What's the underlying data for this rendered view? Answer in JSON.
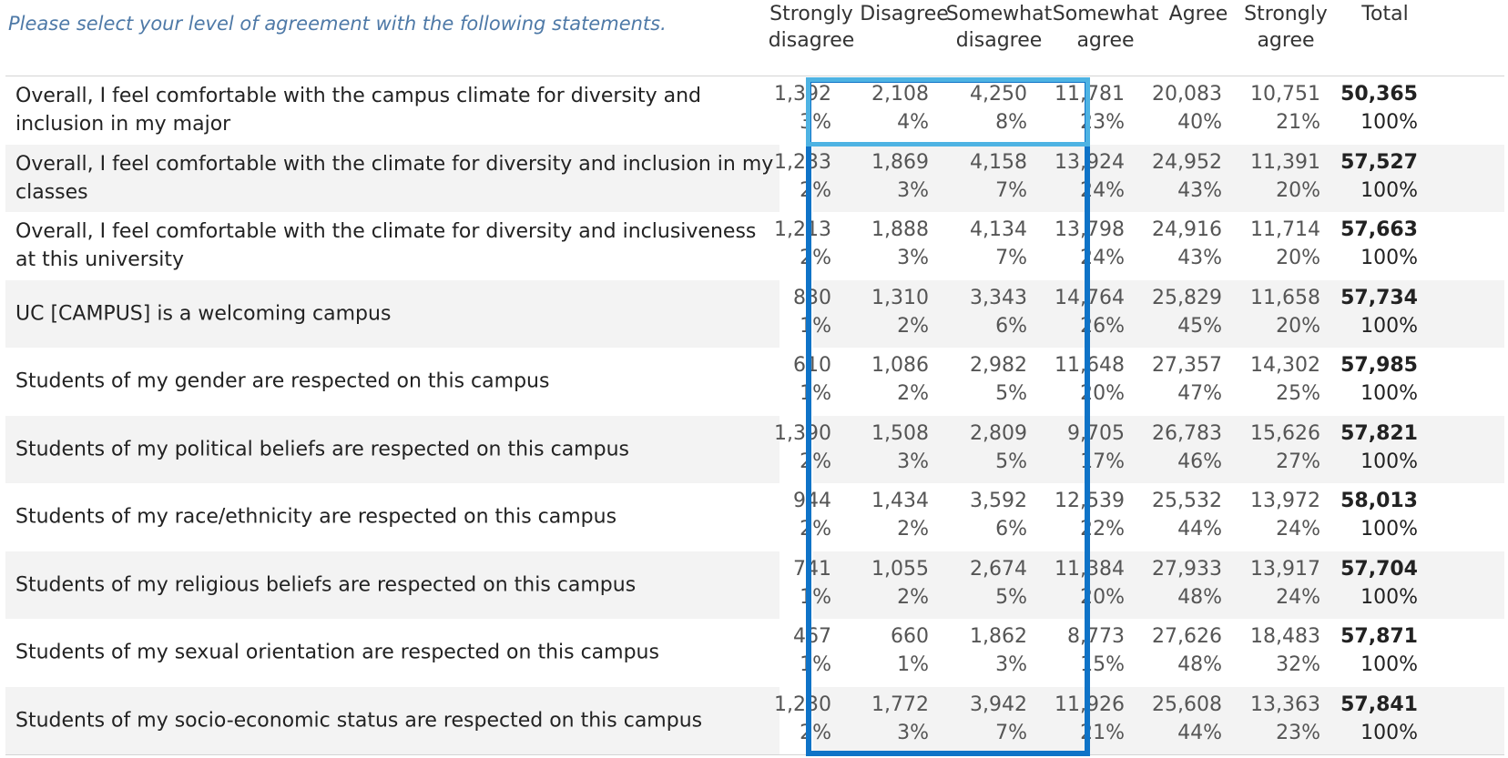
{
  "prompt": "Please select your level of agreement with the following statements.",
  "columns": [
    {
      "line1": "Strongly",
      "line2": "disagree"
    },
    {
      "line1": "Disagree",
      "line2": ""
    },
    {
      "line1": "Somewhat",
      "line2": "disagree"
    },
    {
      "line1": "Somewhat",
      "line2": "agree"
    },
    {
      "line1": "Agree",
      "line2": ""
    },
    {
      "line1": "Strongly",
      "line2": "agree"
    },
    {
      "line1": "Total",
      "line2": ""
    }
  ],
  "rows": [
    {
      "label": "Overall, I feel comfortable with the campus climate for diversity and inclusion in my major",
      "cells": [
        [
          "1,392",
          "3%"
        ],
        [
          "2,108",
          "4%"
        ],
        [
          "4,250",
          "8%"
        ],
        [
          "11,781",
          "23%"
        ],
        [
          "20,083",
          "40%"
        ],
        [
          "10,751",
          "21%"
        ],
        [
          "50,365",
          "100%"
        ]
      ]
    },
    {
      "label": "Overall, I feel comfortable with the climate for diversity and inclusion in my classes",
      "cells": [
        [
          "1,233",
          "2%"
        ],
        [
          "1,869",
          "3%"
        ],
        [
          "4,158",
          "7%"
        ],
        [
          "13,924",
          "24%"
        ],
        [
          "24,952",
          "43%"
        ],
        [
          "11,391",
          "20%"
        ],
        [
          "57,527",
          "100%"
        ]
      ]
    },
    {
      "label": "Overall, I feel comfortable with the climate for diversity and inclusiveness at this university",
      "cells": [
        [
          "1,213",
          "2%"
        ],
        [
          "1,888",
          "3%"
        ],
        [
          "4,134",
          "7%"
        ],
        [
          "13,798",
          "24%"
        ],
        [
          "24,916",
          "43%"
        ],
        [
          "11,714",
          "20%"
        ],
        [
          "57,663",
          "100%"
        ]
      ]
    },
    {
      "label": "UC [CAMPUS] is a welcoming campus",
      "cells": [
        [
          "830",
          "1%"
        ],
        [
          "1,310",
          "2%"
        ],
        [
          "3,343",
          "6%"
        ],
        [
          "14,764",
          "26%"
        ],
        [
          "25,829",
          "45%"
        ],
        [
          "11,658",
          "20%"
        ],
        [
          "57,734",
          "100%"
        ]
      ]
    },
    {
      "label": "Students of my gender are respected on this campus",
      "cells": [
        [
          "610",
          "1%"
        ],
        [
          "1,086",
          "2%"
        ],
        [
          "2,982",
          "5%"
        ],
        [
          "11,648",
          "20%"
        ],
        [
          "27,357",
          "47%"
        ],
        [
          "14,302",
          "25%"
        ],
        [
          "57,985",
          "100%"
        ]
      ]
    },
    {
      "label": "Students of my political beliefs are respected on this campus",
      "cells": [
        [
          "1,390",
          "2%"
        ],
        [
          "1,508",
          "3%"
        ],
        [
          "2,809",
          "5%"
        ],
        [
          "9,705",
          "17%"
        ],
        [
          "26,783",
          "46%"
        ],
        [
          "15,626",
          "27%"
        ],
        [
          "57,821",
          "100%"
        ]
      ]
    },
    {
      "label": "Students of my race/ethnicity are respected on this campus",
      "cells": [
        [
          "944",
          "2%"
        ],
        [
          "1,434",
          "2%"
        ],
        [
          "3,592",
          "6%"
        ],
        [
          "12,539",
          "22%"
        ],
        [
          "25,532",
          "44%"
        ],
        [
          "13,972",
          "24%"
        ],
        [
          "58,013",
          "100%"
        ]
      ]
    },
    {
      "label": "Students of my religious beliefs are respected on this campus",
      "cells": [
        [
          "741",
          "1%"
        ],
        [
          "1,055",
          "2%"
        ],
        [
          "2,674",
          "5%"
        ],
        [
          "11,384",
          "20%"
        ],
        [
          "27,933",
          "48%"
        ],
        [
          "13,917",
          "24%"
        ],
        [
          "57,704",
          "100%"
        ]
      ]
    },
    {
      "label": "Students of my sexual orientation are respected on this campus",
      "cells": [
        [
          "467",
          "1%"
        ],
        [
          "660",
          "1%"
        ],
        [
          "1,862",
          "3%"
        ],
        [
          "8,773",
          "15%"
        ],
        [
          "27,626",
          "48%"
        ],
        [
          "18,483",
          "32%"
        ],
        [
          "57,871",
          "100%"
        ]
      ]
    },
    {
      "label": "Students of my socio-economic status are respected on this campus",
      "cells": [
        [
          "1,230",
          "2%"
        ],
        [
          "1,772",
          "3%"
        ],
        [
          "3,942",
          "7%"
        ],
        [
          "11,926",
          "21%"
        ],
        [
          "25,608",
          "44%"
        ],
        [
          "13,363",
          "23%"
        ],
        [
          "57,841",
          "100%"
        ]
      ]
    }
  ],
  "colors": {
    "prompt": "#4e79a7",
    "highlight_column_border": "#0f73c7",
    "highlight_cell_border": "#4eb3e3",
    "row_shade": "#f3f3f3"
  }
}
